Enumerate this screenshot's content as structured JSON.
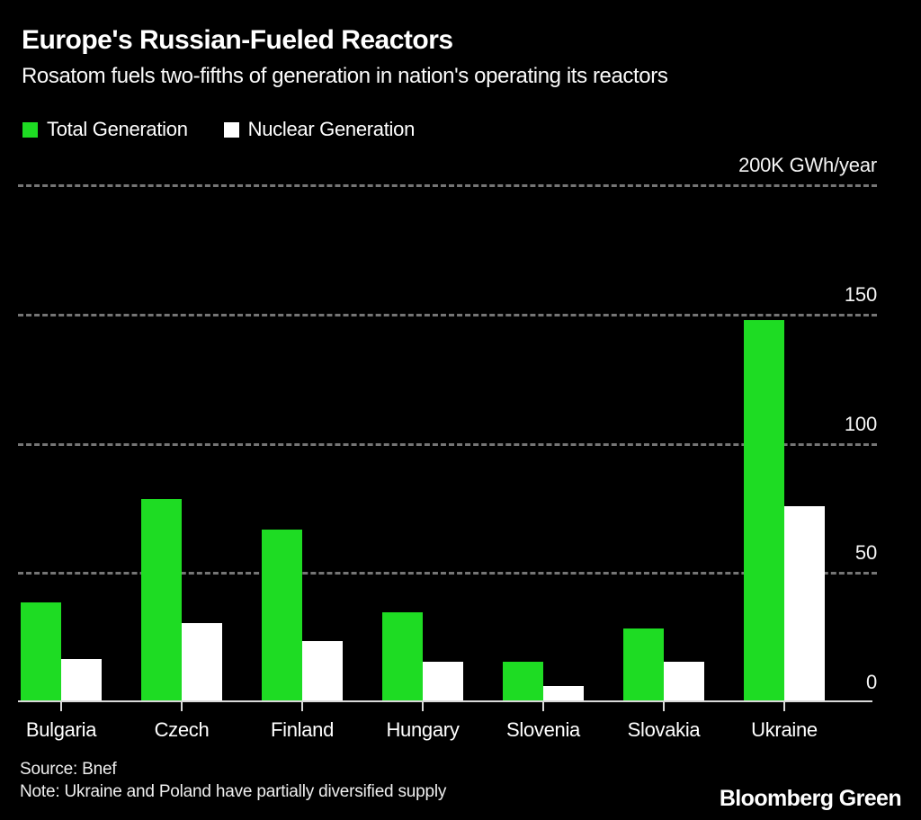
{
  "header": {
    "title": "Europe's Russian-Fueled Reactors",
    "subtitle": "Rosatom fuels two-fifths of generation in nation's operating its reactors"
  },
  "legend": {
    "items": [
      {
        "label": "Total Generation",
        "color": "#1edc23",
        "swatch_icon": "green-square-icon"
      },
      {
        "label": "Nuclear Generation",
        "color": "#ffffff",
        "swatch_icon": "white-square-icon"
      }
    ]
  },
  "chart_data": {
    "type": "bar",
    "title": "Europe's Russian-Fueled Reactors",
    "subtitle": "Rosatom fuels two-fifths of generation in nation's operating its reactors",
    "categories": [
      "Bulgaria",
      "Czech",
      "Finland",
      "Hungary",
      "Slovenia",
      "Slovakia",
      "Ukraine"
    ],
    "series": [
      {
        "name": "Total Generation",
        "color": "#1edc23",
        "values": [
          38,
          78,
          66,
          34,
          15,
          28,
          147
        ]
      },
      {
        "name": "Nuclear Generation",
        "color": "#ffffff",
        "values": [
          16,
          30,
          23,
          15,
          5.5,
          15,
          75
        ]
      }
    ],
    "unit_label": "200K GWh/year",
    "xlabel": "",
    "ylabel": "GWh/year (thousands)",
    "ylim": [
      0,
      200
    ],
    "y_ticks": [
      0,
      50,
      100,
      150,
      200
    ],
    "y_tick_labels": [
      "0",
      "50",
      "100",
      "150",
      "200K GWh/year"
    ],
    "grid": "horizontal dashed gridlines, labels on right, no gridline at 0 (solid axis line)",
    "legend_position": "top-left",
    "background": "#000000"
  },
  "footer": {
    "source": "Source: Bnef",
    "note": "Note: Ukraine and Poland have partially diversified supply",
    "brand": "Bloomberg Green"
  },
  "colors": {
    "background": "#000000",
    "bar_green": "#1edc23",
    "bar_white": "#ffffff",
    "gridline": "#757575",
    "axis_line": "#d9d9d9",
    "text": "#ffffff"
  }
}
